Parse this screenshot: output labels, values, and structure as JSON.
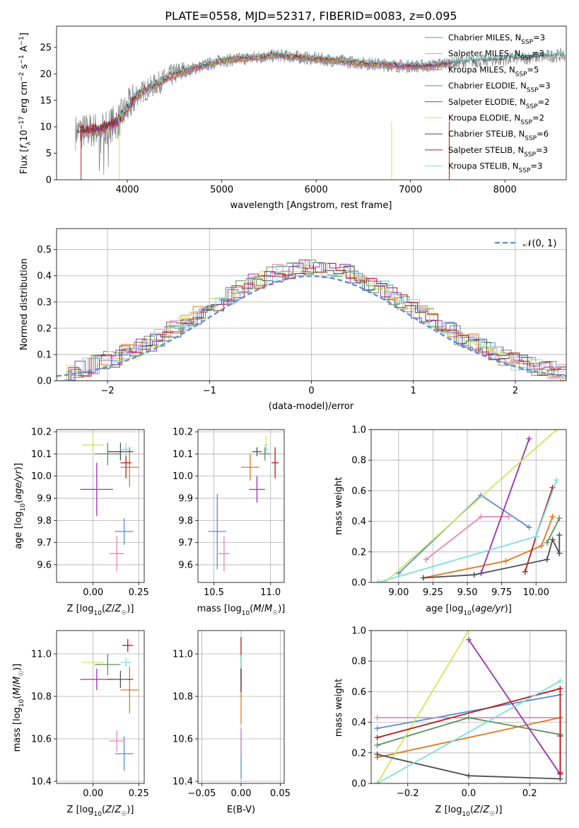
{
  "chart_data": [
    {
      "type": "line",
      "title": "PLATE=0558, MJD=52317, FIBERID=0083, z=0.095",
      "xlabel": "wavelength [Angstrom, rest frame]",
      "ylabel": "Flux [f_λ10^-17 erg cm^-2 s^-1 A^-1]",
      "xlim": [
        3250,
        8650
      ],
      "ylim": [
        0,
        29
      ],
      "xticks": [
        4000,
        5000,
        6000,
        7000,
        8000
      ],
      "yticks": [
        0,
        5,
        10,
        15,
        20,
        25
      ],
      "legend_position": "upper right",
      "series": [
        {
          "name": "Chabrier MILES, N_SSP=3",
          "color": "#5b8bd9"
        },
        {
          "name": "Salpeter MILES, N_SSP=3",
          "color": "#e587b5"
        },
        {
          "name": "Kroupa MILES, N_SSP=5",
          "color": "#e07820"
        },
        {
          "name": "Chabrier ELODIE, N_SSP=3",
          "color": "#5e8f5e"
        },
        {
          "name": "Salpeter ELODIE, N_SSP=2",
          "color": "#9a30b0"
        },
        {
          "name": "Kroupa ELODIE, N_SSP=2",
          "color": "#cde85a"
        },
        {
          "name": "Chabrier STELIB, N_SSP=6",
          "color": "#4d4d4d"
        },
        {
          "name": "Salpeter STELIB, N_SSP=3",
          "color": "#b51c1c"
        },
        {
          "name": "Kroupa STELIB, N_SSP=3",
          "color": "#7fdde0"
        }
      ],
      "data_spectrum_color": "#808080",
      "continuum": {
        "x": [
          3450,
          3700,
          3900,
          4100,
          4300,
          4500,
          4800,
          5000,
          5300,
          5600,
          5900,
          6200,
          6500,
          6900,
          7200,
          7400,
          8600
        ],
        "y": [
          9,
          9.5,
          11,
          16,
          18,
          20,
          21.5,
          22.5,
          23,
          23.5,
          23,
          22.5,
          22,
          21.5,
          21.5,
          22,
          23.5
        ]
      }
    },
    {
      "type": "histogram",
      "xlabel": "(data-model)/error",
      "ylabel": "Normed distribution",
      "xlim": [
        -2.5,
        2.5
      ],
      "ylim": [
        0,
        0.58
      ],
      "xticks": [
        -2,
        -1,
        0,
        1,
        2
      ],
      "yticks": [
        0.0,
        0.1,
        0.2,
        0.3,
        0.4,
        0.5
      ],
      "grid": true,
      "legend_position": "upper right",
      "reference_curve": {
        "name": "𝒩(0, 1)",
        "color": "#5b8bd9",
        "style": "dashed"
      }
    },
    {
      "type": "scatter",
      "xlabel": "Z [log10(Z/Z☉)]",
      "ylabel": "age  [log10(age/yr)]",
      "xlim": [
        -0.2,
        0.28
      ],
      "ylim": [
        9.52,
        10.21
      ],
      "xticks": [
        0.0,
        0.25
      ],
      "yticks": [
        9.6,
        9.7,
        9.8,
        9.9,
        10.0,
        10.1,
        10.2
      ],
      "grid": true,
      "points": [
        {
          "x": 0.17,
          "y": 9.75,
          "xerr": 0.05,
          "yerr": 0.06,
          "color": "#5b8bd9"
        },
        {
          "x": 0.13,
          "y": 9.65,
          "xerr": 0.04,
          "yerr": 0.08,
          "color": "#e587b5"
        },
        {
          "x": 0.2,
          "y": 10.04,
          "xerr": 0.05,
          "yerr": 0.09,
          "color": "#e07820"
        },
        {
          "x": 0.08,
          "y": 10.1,
          "xerr": 0.07,
          "yerr": 0.05,
          "color": "#5e8f5e"
        },
        {
          "x": 0.02,
          "y": 9.94,
          "xerr": 0.09,
          "yerr": 0.12,
          "color": "#9a30b0"
        },
        {
          "x": 0.0,
          "y": 10.14,
          "xerr": 0.06,
          "yerr": 0.04,
          "color": "#cde85a"
        },
        {
          "x": 0.15,
          "y": 10.11,
          "xerr": 0.07,
          "yerr": 0.04,
          "color": "#4d4d4d"
        },
        {
          "x": 0.18,
          "y": 10.06,
          "xerr": 0.03,
          "yerr": 0.07,
          "color": "#b51c1c"
        },
        {
          "x": 0.18,
          "y": 10.12,
          "xerr": 0.03,
          "yerr": 0.03,
          "color": "#7fdde0"
        }
      ]
    },
    {
      "type": "scatter",
      "xlabel": "mass [log10(M/M☉)]",
      "ylabel": "",
      "xlim": [
        10.36,
        11.12
      ],
      "ylim": [
        9.52,
        10.21
      ],
      "xticks": [
        10.5,
        11.0
      ],
      "yticks": [
        9.6,
        9.7,
        9.8,
        9.9,
        10.0,
        10.1,
        10.2
      ],
      "grid": true,
      "points": [
        {
          "x": 10.53,
          "y": 9.75,
          "xerr": 0.08,
          "yerr": 0.17,
          "color": "#5b8bd9"
        },
        {
          "x": 10.59,
          "y": 9.65,
          "xerr": 0.05,
          "yerr": 0.08,
          "color": "#e587b5"
        },
        {
          "x": 10.82,
          "y": 10.04,
          "xerr": 0.08,
          "yerr": 0.06,
          "color": "#e07820"
        },
        {
          "x": 10.95,
          "y": 10.1,
          "xerr": 0.05,
          "yerr": 0.03,
          "color": "#5e8f5e"
        },
        {
          "x": 10.88,
          "y": 9.94,
          "xerr": 0.07,
          "yerr": 0.06,
          "color": "#9a30b0"
        },
        {
          "x": 10.96,
          "y": 10.14,
          "xerr": 0.02,
          "yerr": 0.04,
          "color": "#cde85a"
        },
        {
          "x": 10.88,
          "y": 10.11,
          "xerr": 0.04,
          "yerr": 0.02,
          "color": "#4d4d4d"
        },
        {
          "x": 11.04,
          "y": 10.06,
          "xerr": 0.03,
          "yerr": 0.07,
          "color": "#b51c1c"
        },
        {
          "x": 10.96,
          "y": 10.12,
          "xerr": 0.02,
          "yerr": 0.02,
          "color": "#7fdde0"
        }
      ]
    },
    {
      "type": "line",
      "xlabel": "age  [log10(age/yr)]",
      "ylabel": "mass weight",
      "xlim": [
        8.8,
        10.22
      ],
      "ylim": [
        0,
        1
      ],
      "xticks": [
        9.0,
        9.25,
        9.5,
        9.75,
        10.0
      ],
      "yticks": [
        0.0,
        0.2,
        0.4,
        0.6,
        0.8,
        1.0
      ],
      "grid": true,
      "series": [
        {
          "color": "#5b8bd9",
          "x": [
            9.0,
            9.6,
            9.95
          ],
          "y": [
            0.06,
            0.57,
            0.36
          ]
        },
        {
          "color": "#e587b5",
          "x": [
            9.2,
            9.6,
            9.8
          ],
          "y": [
            0.15,
            0.43,
            0.43
          ]
        },
        {
          "color": "#e07820",
          "x": [
            9.18,
            9.78,
            10.04,
            10.12
          ],
          "y": [
            0.03,
            0.14,
            0.24,
            0.43
          ]
        },
        {
          "color": "#5e8f5e",
          "x": [
            10.08,
            10.17
          ],
          "y": [
            0.26,
            0.42
          ]
        },
        {
          "color": "#9a30b0",
          "x": [
            9.6,
            9.95
          ],
          "y": [
            0.06,
            0.94
          ]
        },
        {
          "color": "#cde85a",
          "x": [
            8.9,
            10.15
          ],
          "y": [
            0.0,
            1.0
          ]
        },
        {
          "color": "#4d4d4d",
          "x": [
            9.18,
            9.55,
            10.08,
            10.12,
            10.17,
            10.17
          ],
          "y": [
            0.03,
            0.05,
            0.15,
            0.28,
            0.19,
            0.31
          ]
        },
        {
          "color": "#b51c1c",
          "x": [
            9.92,
            10.0,
            10.12
          ],
          "y": [
            0.07,
            0.3,
            0.62
          ]
        },
        {
          "color": "#7fdde0",
          "x": [
            8.85,
            10.0,
            10.15
          ],
          "y": [
            0.0,
            0.3,
            0.67
          ]
        }
      ]
    },
    {
      "type": "scatter",
      "xlabel": "Z [log10(Z/Z☉)]",
      "ylabel": "mass [log10(M/M☉)]",
      "xlim": [
        -0.2,
        0.28
      ],
      "ylim": [
        10.39,
        11.11
      ],
      "xticks": [
        0.0,
        0.25
      ],
      "yticks": [
        10.4,
        10.6,
        10.8,
        11.0
      ],
      "grid": true,
      "points": [
        {
          "x": 0.17,
          "y": 10.53,
          "xerr": 0.05,
          "yerr": 0.08,
          "color": "#5b8bd9"
        },
        {
          "x": 0.13,
          "y": 10.59,
          "xerr": 0.04,
          "yerr": 0.05,
          "color": "#e587b5"
        },
        {
          "x": 0.2,
          "y": 10.83,
          "xerr": 0.05,
          "yerr": 0.11,
          "color": "#e07820"
        },
        {
          "x": 0.08,
          "y": 10.95,
          "xerr": 0.07,
          "yerr": 0.05,
          "color": "#5e8f5e"
        },
        {
          "x": 0.02,
          "y": 10.88,
          "xerr": 0.09,
          "yerr": 0.05,
          "color": "#9a30b0"
        },
        {
          "x": 0.0,
          "y": 10.96,
          "xerr": 0.06,
          "yerr": 0.02,
          "color": "#cde85a"
        },
        {
          "x": 0.15,
          "y": 10.88,
          "xerr": 0.07,
          "yerr": 0.04,
          "color": "#4d4d4d"
        },
        {
          "x": 0.19,
          "y": 11.04,
          "xerr": 0.03,
          "yerr": 0.03,
          "color": "#b51c1c"
        },
        {
          "x": 0.18,
          "y": 10.96,
          "xerr": 0.03,
          "yerr": 0.02,
          "color": "#7fdde0"
        }
      ]
    },
    {
      "type": "scatter",
      "xlabel": "E(B-V)",
      "ylabel": "",
      "xlim": [
        -0.055,
        0.055
      ],
      "ylim": [
        10.39,
        11.11
      ],
      "xticks": [
        -0.05,
        0.0,
        0.05
      ],
      "yticks": [
        10.4,
        10.6,
        10.8,
        11.0
      ],
      "grid": true,
      "points": [
        {
          "x": 0.0,
          "y": 10.53,
          "xerr": 0,
          "yerr": 0.12,
          "color": "#5b8bd9"
        },
        {
          "x": 0.0,
          "y": 10.59,
          "xerr": 0,
          "yerr": 0.06,
          "color": "#e587b5"
        },
        {
          "x": 0.0,
          "y": 10.83,
          "xerr": 0,
          "yerr": 0.16,
          "color": "#e07820"
        },
        {
          "x": 0.0,
          "y": 10.95,
          "xerr": 0,
          "yerr": 0.06,
          "color": "#5e8f5e"
        },
        {
          "x": 0.0,
          "y": 10.88,
          "xerr": 0,
          "yerr": 0.06,
          "color": "#9a30b0"
        },
        {
          "x": 0.0,
          "y": 10.96,
          "xerr": 0,
          "yerr": 0.03,
          "color": "#cde85a"
        },
        {
          "x": 0.0,
          "y": 10.88,
          "xerr": 0,
          "yerr": 0.06,
          "color": "#4d4d4d"
        },
        {
          "x": 0.0,
          "y": 11.04,
          "xerr": 0,
          "yerr": 0.04,
          "color": "#b51c1c"
        },
        {
          "x": 0.0,
          "y": 10.96,
          "xerr": 0,
          "yerr": 0.03,
          "color": "#7fdde0"
        }
      ]
    },
    {
      "type": "line",
      "xlabel": "Z [log10(Z/Z☉)]",
      "ylabel": "mass weight",
      "xlim": [
        -0.32,
        0.32
      ],
      "ylim": [
        0,
        1
      ],
      "xticks": [
        -0.2,
        0.0,
        0.2
      ],
      "yticks": [
        0.0,
        0.2,
        0.4,
        0.6,
        0.8,
        1.0
      ],
      "grid": true,
      "series": [
        {
          "color": "#5b8bd9",
          "x": [
            -0.3,
            0.3
          ],
          "y": [
            0.36,
            0.58
          ]
        },
        {
          "color": "#e587b5",
          "x": [
            -0.3,
            0.3
          ],
          "y": [
            0.43,
            0.43
          ]
        },
        {
          "color": "#e07820",
          "x": [
            -0.3,
            0.3,
            0.3
          ],
          "y": [
            0.17,
            0.43,
            0.06
          ]
        },
        {
          "color": "#5e8f5e",
          "x": [
            -0.3,
            0.0,
            0.3
          ],
          "y": [
            0.25,
            0.43,
            0.32
          ]
        },
        {
          "color": "#9a30b0",
          "x": [
            0.0,
            0.3
          ],
          "y": [
            0.94,
            0.06
          ]
        },
        {
          "color": "#cde85a",
          "x": [
            -0.3,
            0.0
          ],
          "y": [
            0.0,
            1.0
          ]
        },
        {
          "color": "#4d4d4d",
          "x": [
            -0.3,
            0.0,
            0.3,
            0.3
          ],
          "y": [
            0.19,
            0.05,
            0.03,
            0.31
          ]
        },
        {
          "color": "#b51c1c",
          "x": [
            -0.3,
            0.3,
            0.3
          ],
          "y": [
            0.3,
            0.62,
            0.07
          ]
        },
        {
          "color": "#7fdde0",
          "x": [
            -0.3,
            0.3
          ],
          "y": [
            0.0,
            0.67
          ]
        }
      ]
    }
  ]
}
